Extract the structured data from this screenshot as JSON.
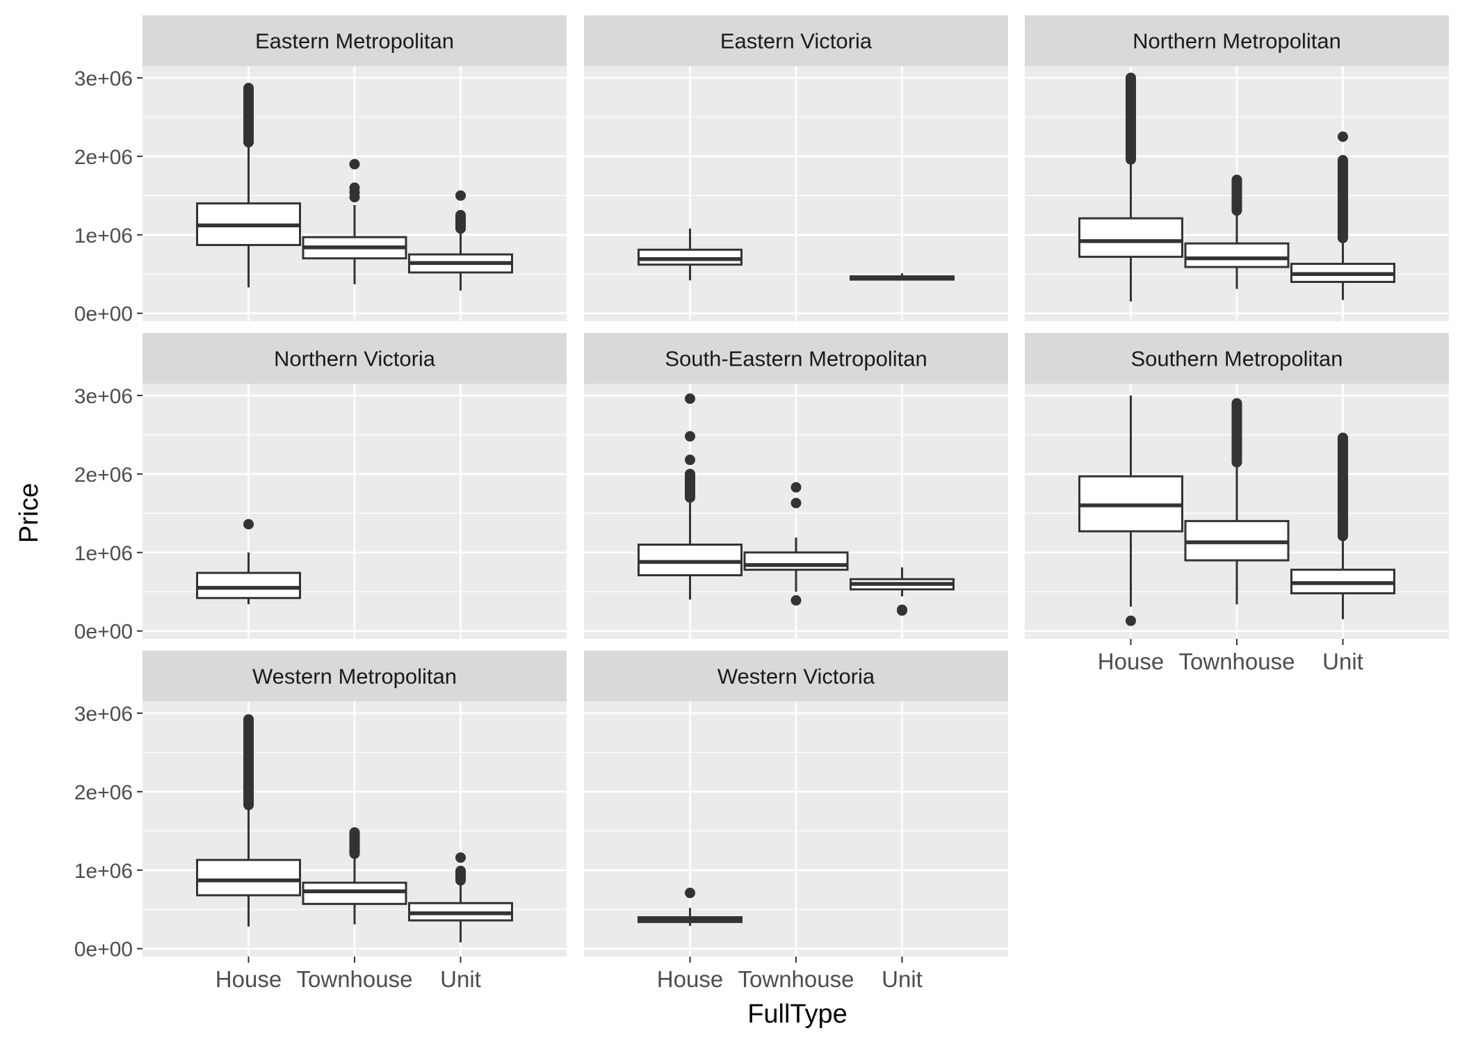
{
  "chart_data": {
    "type": "box",
    "xlabel": "FullType",
    "ylabel": "Price",
    "categories": [
      "House",
      "Townhouse",
      "Unit"
    ],
    "y_ticks": [
      "0e+00",
      "1e+06",
      "2e+06",
      "3e+06"
    ],
    "y_tick_values": [
      0,
      1000000,
      2000000,
      3000000
    ],
    "ylim": [
      -100000,
      3150000
    ],
    "grid": true,
    "colors": {
      "panel_bg": "#ebebeb",
      "strip_bg": "#d9d9d9",
      "grid": "#ffffff",
      "box_line": "#333333",
      "box_fill": "#ffffff"
    },
    "panels": [
      {
        "name": "Eastern Metropolitan",
        "boxes": [
          {
            "category": "House",
            "min": 330000,
            "q1": 870000,
            "median": 1120000,
            "q3": 1400000,
            "max": 2170000,
            "outlier_range": [
              2180000,
              2870000
            ]
          },
          {
            "category": "Townhouse",
            "min": 370000,
            "q1": 700000,
            "median": 840000,
            "q3": 970000,
            "max": 1380000,
            "outliers": [
              1480000,
              1540000,
              1600000,
              1900000
            ]
          },
          {
            "category": "Unit",
            "min": 290000,
            "q1": 520000,
            "median": 640000,
            "q3": 750000,
            "max": 1060000,
            "outlier_range": [
              1080000,
              1250000
            ],
            "outliers": [
              1500000
            ]
          }
        ]
      },
      {
        "name": "Eastern Victoria",
        "boxes": [
          {
            "category": "House",
            "min": 420000,
            "q1": 620000,
            "median": 690000,
            "q3": 810000,
            "max": 1080000
          },
          {
            "category": "Unit",
            "min": 420000,
            "q1": 430000,
            "median": 450000,
            "q3": 470000,
            "max": 510000
          }
        ]
      },
      {
        "name": "Northern Metropolitan",
        "boxes": [
          {
            "category": "House",
            "min": 150000,
            "q1": 720000,
            "median": 920000,
            "q3": 1210000,
            "max": 1950000,
            "outlier_range": [
              1960000,
              3000000
            ]
          },
          {
            "category": "Townhouse",
            "min": 310000,
            "q1": 590000,
            "median": 700000,
            "q3": 890000,
            "max": 1290000,
            "outlier_range": [
              1310000,
              1700000
            ]
          },
          {
            "category": "Unit",
            "min": 170000,
            "q1": 400000,
            "median": 500000,
            "q3": 630000,
            "max": 950000,
            "outlier_range": [
              960000,
              1950000
            ],
            "outliers": [
              2250000
            ]
          }
        ]
      },
      {
        "name": "Northern Victoria",
        "boxes": [
          {
            "category": "House",
            "min": 340000,
            "q1": 420000,
            "median": 550000,
            "q3": 740000,
            "max": 1000000,
            "outliers": [
              1360000
            ]
          }
        ]
      },
      {
        "name": "South-Eastern Metropolitan",
        "boxes": [
          {
            "category": "House",
            "min": 400000,
            "q1": 710000,
            "median": 880000,
            "q3": 1100000,
            "max": 1680000,
            "outlier_range": [
              1700000,
              2000000
            ],
            "outliers": [
              2180000,
              2480000,
              2960000
            ]
          },
          {
            "category": "Townhouse",
            "min": 500000,
            "q1": 780000,
            "median": 840000,
            "q3": 1000000,
            "max": 1190000,
            "outliers": [
              390000,
              1630000,
              1830000
            ]
          },
          {
            "category": "Unit",
            "min": 440000,
            "q1": 530000,
            "median": 600000,
            "q3": 660000,
            "max": 810000,
            "outliers": [
              270000,
              260000
            ]
          }
        ]
      },
      {
        "name": "Southern Metropolitan",
        "boxes": [
          {
            "category": "House",
            "min": 310000,
            "q1": 1270000,
            "median": 1600000,
            "q3": 1970000,
            "max": 3000000,
            "outliers": [
              130000
            ]
          },
          {
            "category": "Townhouse",
            "min": 340000,
            "q1": 900000,
            "median": 1130000,
            "q3": 1400000,
            "max": 2140000,
            "outlier_range": [
              2150000,
              2900000
            ]
          },
          {
            "category": "Unit",
            "min": 150000,
            "q1": 480000,
            "median": 610000,
            "q3": 780000,
            "max": 1200000,
            "outlier_range": [
              1210000,
              2460000
            ]
          }
        ]
      },
      {
        "name": "Western Metropolitan",
        "boxes": [
          {
            "category": "House",
            "min": 280000,
            "q1": 680000,
            "median": 870000,
            "q3": 1130000,
            "max": 1820000,
            "outlier_range": [
              1830000,
              2920000
            ]
          },
          {
            "category": "Townhouse",
            "min": 310000,
            "q1": 570000,
            "median": 730000,
            "q3": 840000,
            "max": 1200000,
            "outlier_range": [
              1210000,
              1480000
            ]
          },
          {
            "category": "Unit",
            "min": 80000,
            "q1": 360000,
            "median": 450000,
            "q3": 580000,
            "max": 850000,
            "outlier_range": [
              870000,
              990000
            ],
            "outliers": [
              1160000
            ]
          }
        ]
      },
      {
        "name": "Western Victoria",
        "boxes": [
          {
            "category": "House",
            "min": 290000,
            "q1": 340000,
            "median": 370000,
            "q3": 400000,
            "max": 520000,
            "outliers": [
              710000
            ]
          }
        ]
      }
    ]
  }
}
